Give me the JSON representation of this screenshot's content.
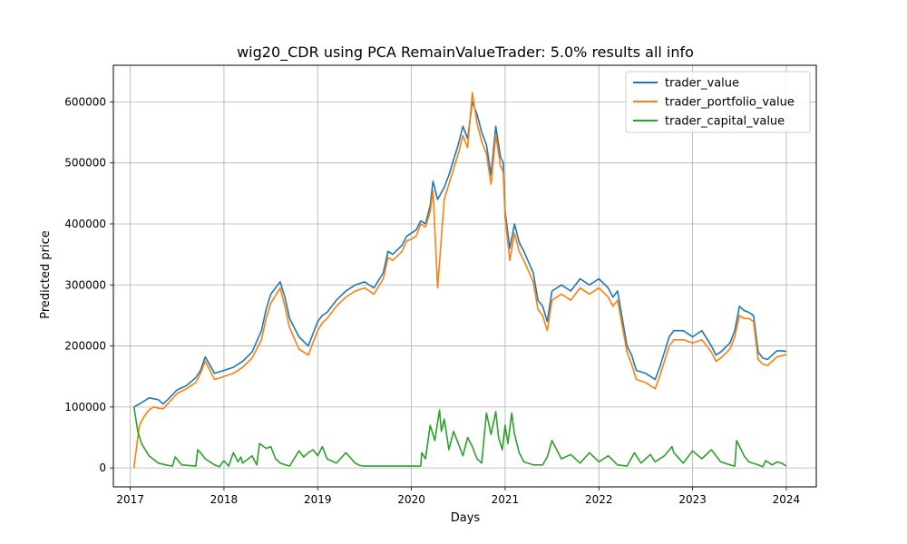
{
  "chart_data": {
    "type": "line",
    "title": "wig20_CDR using PCA RemainValueTrader: 5.0% results all info",
    "xlabel": "Days",
    "ylabel": "Predicted price",
    "xlim": [
      2016.82,
      2024.32
    ],
    "ylim": [
      -31000,
      660000
    ],
    "grid": true,
    "legend_position": "top-right",
    "x_ticks": [
      {
        "value": 2017,
        "label": "2017"
      },
      {
        "value": 2018,
        "label": "2018"
      },
      {
        "value": 2019,
        "label": "2019"
      },
      {
        "value": 2020,
        "label": "2020"
      },
      {
        "value": 2021,
        "label": "2021"
      },
      {
        "value": 2022,
        "label": "2022"
      },
      {
        "value": 2023,
        "label": "2023"
      },
      {
        "value": 2024,
        "label": "2024"
      }
    ],
    "y_ticks": [
      {
        "value": 0,
        "label": "0"
      },
      {
        "value": 100000,
        "label": "100000"
      },
      {
        "value": 200000,
        "label": "200000"
      },
      {
        "value": 300000,
        "label": "300000"
      },
      {
        "value": 400000,
        "label": "400000"
      },
      {
        "value": 500000,
        "label": "500000"
      },
      {
        "value": 600000,
        "label": "600000"
      }
    ],
    "series": [
      {
        "name": "trader_value",
        "color": "#1f77b4",
        "x": [
          2017.04,
          2017.1,
          2017.2,
          2017.3,
          2017.35,
          2017.4,
          2017.5,
          2017.6,
          2017.7,
          2017.75,
          2017.8,
          2017.9,
          2018.0,
          2018.1,
          2018.2,
          2018.3,
          2018.4,
          2018.45,
          2018.5,
          2018.6,
          2018.65,
          2018.7,
          2018.8,
          2018.9,
          2018.95,
          2019.0,
          2019.05,
          2019.1,
          2019.2,
          2019.3,
          2019.4,
          2019.5,
          2019.6,
          2019.7,
          2019.75,
          2019.8,
          2019.9,
          2019.95,
          2020.0,
          2020.05,
          2020.1,
          2020.15,
          2020.2,
          2020.23,
          2020.28,
          2020.35,
          2020.4,
          2020.5,
          2020.55,
          2020.6,
          2020.65,
          2020.7,
          2020.75,
          2020.8,
          2020.85,
          2020.9,
          2020.95,
          2020.98,
          2021.0,
          2021.05,
          2021.1,
          2021.15,
          2021.2,
          2021.3,
          2021.35,
          2021.4,
          2021.45,
          2021.5,
          2021.6,
          2021.7,
          2021.8,
          2021.9,
          2022.0,
          2022.1,
          2022.15,
          2022.2,
          2022.3,
          2022.35,
          2022.4,
          2022.5,
          2022.6,
          2022.65,
          2022.7,
          2022.75,
          2022.8,
          2022.9,
          2023.0,
          2023.1,
          2023.2,
          2023.25,
          2023.3,
          2023.4,
          2023.45,
          2023.5,
          2023.55,
          2023.6,
          2023.65,
          2023.7,
          2023.75,
          2023.8,
          2023.85,
          2023.9,
          2023.95,
          2024.0
        ],
        "values": [
          100000,
          105000,
          115000,
          112000,
          105000,
          112000,
          128000,
          135000,
          148000,
          160000,
          182000,
          155000,
          160000,
          165000,
          175000,
          190000,
          225000,
          260000,
          285000,
          305000,
          280000,
          245000,
          215000,
          200000,
          220000,
          240000,
          250000,
          255000,
          275000,
          290000,
          300000,
          305000,
          295000,
          320000,
          355000,
          350000,
          365000,
          380000,
          385000,
          390000,
          405000,
          400000,
          430000,
          470000,
          440000,
          460000,
          480000,
          530000,
          560000,
          540000,
          600000,
          580000,
          550000,
          530000,
          480000,
          560000,
          510000,
          500000,
          420000,
          360000,
          400000,
          370000,
          355000,
          320000,
          275000,
          265000,
          240000,
          290000,
          300000,
          290000,
          310000,
          300000,
          310000,
          295000,
          280000,
          290000,
          200000,
          185000,
          160000,
          155000,
          145000,
          165000,
          190000,
          215000,
          225000,
          225000,
          215000,
          225000,
          200000,
          185000,
          190000,
          205000,
          225000,
          265000,
          258000,
          255000,
          250000,
          190000,
          180000,
          178000,
          185000,
          192000,
          192000,
          191000
        ]
      },
      {
        "name": "trader_portfolio_value",
        "color": "#ff7f0e",
        "x": [
          2017.04,
          2017.06,
          2017.08,
          2017.1,
          2017.15,
          2017.2,
          2017.25,
          2017.3,
          2017.35,
          2017.4,
          2017.5,
          2017.6,
          2017.7,
          2017.75,
          2017.8,
          2017.9,
          2018.0,
          2018.1,
          2018.2,
          2018.3,
          2018.4,
          2018.45,
          2018.5,
          2018.6,
          2018.65,
          2018.7,
          2018.8,
          2018.9,
          2018.95,
          2019.0,
          2019.05,
          2019.1,
          2019.2,
          2019.3,
          2019.4,
          2019.5,
          2019.6,
          2019.7,
          2019.75,
          2019.8,
          2019.9,
          2019.95,
          2020.0,
          2020.05,
          2020.1,
          2020.15,
          2020.2,
          2020.23,
          2020.28,
          2020.35,
          2020.4,
          2020.5,
          2020.55,
          2020.6,
          2020.65,
          2020.7,
          2020.75,
          2020.8,
          2020.85,
          2020.9,
          2020.95,
          2020.98,
          2021.0,
          2021.05,
          2021.1,
          2021.15,
          2021.2,
          2021.3,
          2021.35,
          2021.4,
          2021.45,
          2021.5,
          2021.6,
          2021.7,
          2021.8,
          2021.9,
          2022.0,
          2022.1,
          2022.15,
          2022.2,
          2022.3,
          2022.35,
          2022.4,
          2022.5,
          2022.6,
          2022.65,
          2022.7,
          2022.75,
          2022.8,
          2022.9,
          2023.0,
          2023.1,
          2023.2,
          2023.25,
          2023.3,
          2023.4,
          2023.45,
          2023.5,
          2023.55,
          2023.6,
          2023.65,
          2023.7,
          2023.75,
          2023.8,
          2023.85,
          2023.9,
          2023.95,
          2024.0
        ],
        "values": [
          0,
          25000,
          50000,
          70000,
          85000,
          95000,
          100000,
          98000,
          97000,
          105000,
          122000,
          130000,
          140000,
          155000,
          175000,
          145000,
          150000,
          155000,
          165000,
          180000,
          210000,
          245000,
          270000,
          295000,
          265000,
          230000,
          195000,
          185000,
          205000,
          225000,
          238000,
          245000,
          265000,
          280000,
          290000,
          295000,
          285000,
          310000,
          345000,
          340000,
          355000,
          372000,
          375000,
          380000,
          400000,
          395000,
          420000,
          455000,
          295000,
          440000,
          465000,
          515000,
          545000,
          525000,
          615000,
          565000,
          535000,
          515000,
          465000,
          545000,
          495000,
          485000,
          410000,
          340000,
          385000,
          355000,
          340000,
          305000,
          260000,
          250000,
          225000,
          275000,
          285000,
          275000,
          295000,
          285000,
          295000,
          280000,
          265000,
          275000,
          190000,
          170000,
          145000,
          140000,
          130000,
          150000,
          175000,
          200000,
          210000,
          210000,
          205000,
          210000,
          190000,
          175000,
          180000,
          195000,
          215000,
          250000,
          245000,
          245000,
          240000,
          178000,
          170000,
          168000,
          175000,
          182000,
          184000,
          186000
        ]
      },
      {
        "name": "trader_capital_value",
        "color": "#2ca02c",
        "x": [
          2017.04,
          2017.08,
          2017.12,
          2017.2,
          2017.3,
          2017.38,
          2017.45,
          2017.48,
          2017.55,
          2017.7,
          2017.72,
          2017.75,
          2017.8,
          2017.9,
          2017.95,
          2018.0,
          2018.05,
          2018.1,
          2018.15,
          2018.18,
          2018.2,
          2018.3,
          2018.35,
          2018.38,
          2018.45,
          2018.5,
          2018.55,
          2018.6,
          2018.7,
          2018.8,
          2018.85,
          2018.9,
          2018.95,
          2019.0,
          2019.05,
          2019.1,
          2019.2,
          2019.3,
          2019.4,
          2019.45,
          2019.5,
          2019.6,
          2019.7,
          2019.9,
          2020.1,
          2020.11,
          2020.15,
          2020.2,
          2020.25,
          2020.3,
          2020.32,
          2020.35,
          2020.38,
          2020.4,
          2020.45,
          2020.5,
          2020.55,
          2020.6,
          2020.65,
          2020.7,
          2020.75,
          2020.8,
          2020.85,
          2020.9,
          2020.93,
          2020.97,
          2021.0,
          2021.03,
          2021.07,
          2021.1,
          2021.15,
          2021.2,
          2021.3,
          2021.4,
          2021.45,
          2021.5,
          2021.6,
          2021.7,
          2021.8,
          2021.9,
          2022.0,
          2022.1,
          2022.2,
          2022.3,
          2022.38,
          2022.45,
          2022.5,
          2022.55,
          2022.6,
          2022.7,
          2022.78,
          2022.8,
          2022.9,
          2023.0,
          2023.1,
          2023.2,
          2023.3,
          2023.4,
          2023.45,
          2023.47,
          2023.55,
          2023.6,
          2023.7,
          2023.75,
          2023.78,
          2023.85,
          2023.9,
          2023.95,
          2024.0
        ],
        "values": [
          100000,
          60000,
          40000,
          20000,
          8000,
          5000,
          3000,
          18000,
          5000,
          3000,
          30000,
          25000,
          15000,
          5000,
          2000,
          12000,
          3000,
          25000,
          10000,
          18000,
          8000,
          20000,
          5000,
          40000,
          32000,
          35000,
          15000,
          8000,
          3000,
          28000,
          18000,
          25000,
          30000,
          20000,
          35000,
          15000,
          8000,
          25000,
          8000,
          4000,
          3000,
          3000,
          3000,
          3000,
          3000,
          25000,
          15000,
          70000,
          45000,
          95000,
          60000,
          80000,
          50000,
          30000,
          60000,
          40000,
          20000,
          50000,
          35000,
          15000,
          8000,
          90000,
          55000,
          92000,
          50000,
          30000,
          70000,
          40000,
          90000,
          55000,
          25000,
          10000,
          5000,
          5000,
          18000,
          45000,
          15000,
          22000,
          8000,
          25000,
          10000,
          20000,
          5000,
          3000,
          25000,
          8000,
          15000,
          22000,
          10000,
          20000,
          35000,
          25000,
          8000,
          28000,
          15000,
          30000,
          10000,
          5000,
          3000,
          45000,
          20000,
          10000,
          5000,
          2000,
          12000,
          5000,
          10000,
          8000,
          3000
        ]
      }
    ]
  }
}
